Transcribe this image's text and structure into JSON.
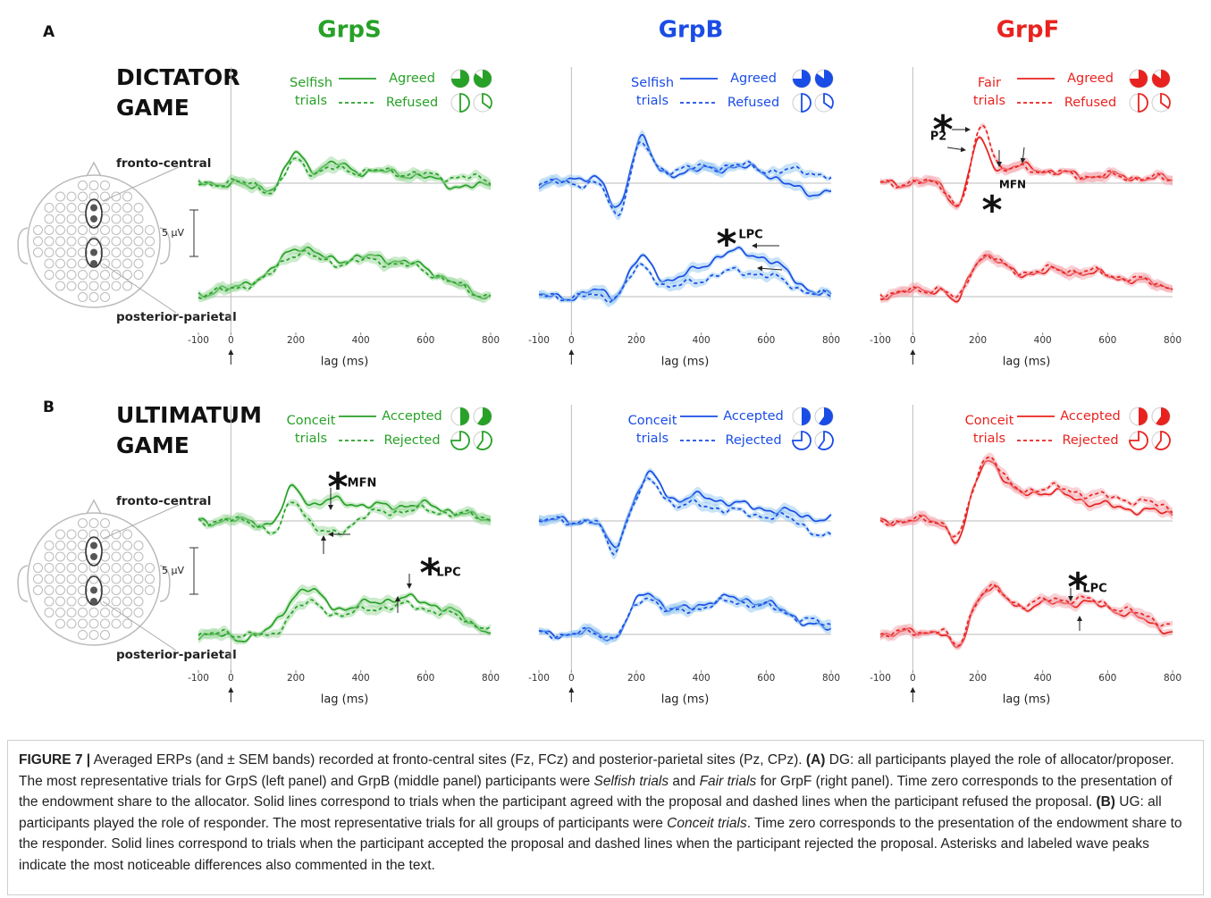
{
  "panel_labels": [
    "A",
    "B"
  ],
  "groups": [
    {
      "name": "GrpS",
      "color": "#27a127",
      "band": "#9ad89a"
    },
    {
      "name": "GrpB",
      "color": "#1a4de6",
      "band": "#92c8f2"
    },
    {
      "name": "GrpF",
      "color": "#e8231f",
      "band": "#f3a6ad"
    }
  ],
  "games": [
    {
      "title": [
        "DICTATOR",
        "GAME"
      ],
      "legends": [
        {
          "trials": [
            "Selfish",
            "trials"
          ],
          "solid": "Agreed",
          "dashed": "Refused"
        },
        {
          "trials": [
            "Selfish",
            "trials"
          ],
          "solid": "Agreed",
          "dashed": "Refused"
        },
        {
          "trials": [
            "Fair",
            "trials"
          ],
          "solid": "Agreed",
          "dashed": "Refused"
        }
      ]
    },
    {
      "title": [
        "ULTIMATUM",
        "GAME"
      ],
      "legends": [
        {
          "trials": [
            "Conceit",
            "trials"
          ],
          "solid": "Accepted",
          "dashed": "Rejected"
        },
        {
          "trials": [
            "Conceit",
            "trials"
          ],
          "solid": "Accepted",
          "dashed": "Rejected"
        },
        {
          "trials": [
            "Conceit",
            "trials"
          ],
          "solid": "Accepted",
          "dashed": "Rejected"
        }
      ]
    }
  ],
  "sites": [
    "fronto-central",
    "posterior-parietal"
  ],
  "x_axis": {
    "label": "lag (ms)",
    "ticks": [
      -100,
      0,
      200,
      400,
      600,
      800
    ]
  },
  "scale_bar": "5 µV",
  "annotations": [
    "*",
    "P2",
    "*",
    "MFN",
    "*",
    "LPC",
    "*",
    "MFN",
    "*",
    "LPC",
    "*",
    "LPC"
  ],
  "caption": [
    {
      "text": "FIGURE 7 |",
      "style": "bold"
    },
    {
      "text": " Averaged ERPs (and ± SEM bands) recorded at fronto-central sites (Fz, FCz) and posterior-parietal sites (Pz, CPz). ",
      "style": "normal"
    },
    {
      "text": "(A)",
      "style": "bold"
    },
    {
      "text": " DG: all participants played the role of allocator/proposer. The most representative trials for GrpS (left panel) and GrpB (middle panel) participants were ",
      "style": "normal"
    },
    {
      "text": "Selfish trials",
      "style": "italic"
    },
    {
      "text": " and ",
      "style": "normal"
    },
    {
      "text": "Fair trials",
      "style": "italic"
    },
    {
      "text": " for GrpF (right panel). Time zero corresponds to the presentation of the endowment share to the allocator. Solid lines correspond to trials when the participant agreed with the proposal and dashed lines when the participant refused the proposal. ",
      "style": "normal"
    },
    {
      "text": "(B)",
      "style": "bold"
    },
    {
      "text": " UG: all participants played the role of responder. The most representative trials for all groups of participants were ",
      "style": "normal"
    },
    {
      "text": "Conceit trials",
      "style": "italic"
    },
    {
      "text": ". Time zero corresponds to the presentation of the endowment share to the responder. Solid lines correspond to trials when the participant accepted the proposal and dashed lines when the participant rejected the proposal. Asterisks and labeled wave peaks indicate the most noticeable differences also commented in the text.",
      "style": "normal"
    }
  ]
}
